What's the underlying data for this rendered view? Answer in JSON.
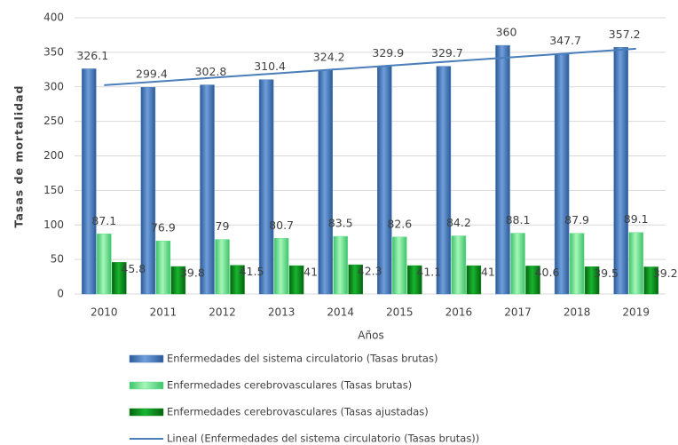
{
  "chart_data": {
    "type": "bar",
    "x_label": "Años",
    "y_label": "Tasas  de mortalidad",
    "categories": [
      "2010",
      "2011",
      "2012",
      "2013",
      "2014",
      "2015",
      "2016",
      "2017",
      "2018",
      "2019"
    ],
    "series": [
      {
        "name": "Enfermedades del sistema circulatorio (Tasas brutas)",
        "color": "#4f81bd",
        "values": [
          326.1,
          299.4,
          302.8,
          310.4,
          324.2,
          329.9,
          329.7,
          360,
          347.7,
          357.2
        ]
      },
      {
        "name": "Enfermedades cerebrovasculares (Tasas brutas)",
        "color": "#66e08a",
        "values": [
          87.1,
          76.9,
          79,
          80.7,
          83.5,
          82.6,
          84.2,
          88.1,
          87.9,
          89.1
        ]
      },
      {
        "name": "Enfermedades cerebrovasculares (Tasas ajustadas)",
        "color": "#0b8f1f",
        "values": [
          45.8,
          39.8,
          41.5,
          41,
          42.3,
          41.1,
          41,
          40.6,
          39.5,
          39.2
        ]
      },
      {
        "name": "Lineal (Enfermedades del sistema circulatorio (Tasas brutas))",
        "color": "#4a7ebb",
        "type": "line",
        "values": [
          302.4,
          308.2,
          314.1,
          320.0,
          325.8,
          331.7,
          337.6,
          343.4,
          349.3,
          355.1
        ]
      }
    ],
    "ylim": [
      0,
      400
    ],
    "yticks": [
      0,
      50,
      100,
      150,
      200,
      250,
      300,
      350,
      400
    ],
    "grid": true
  }
}
